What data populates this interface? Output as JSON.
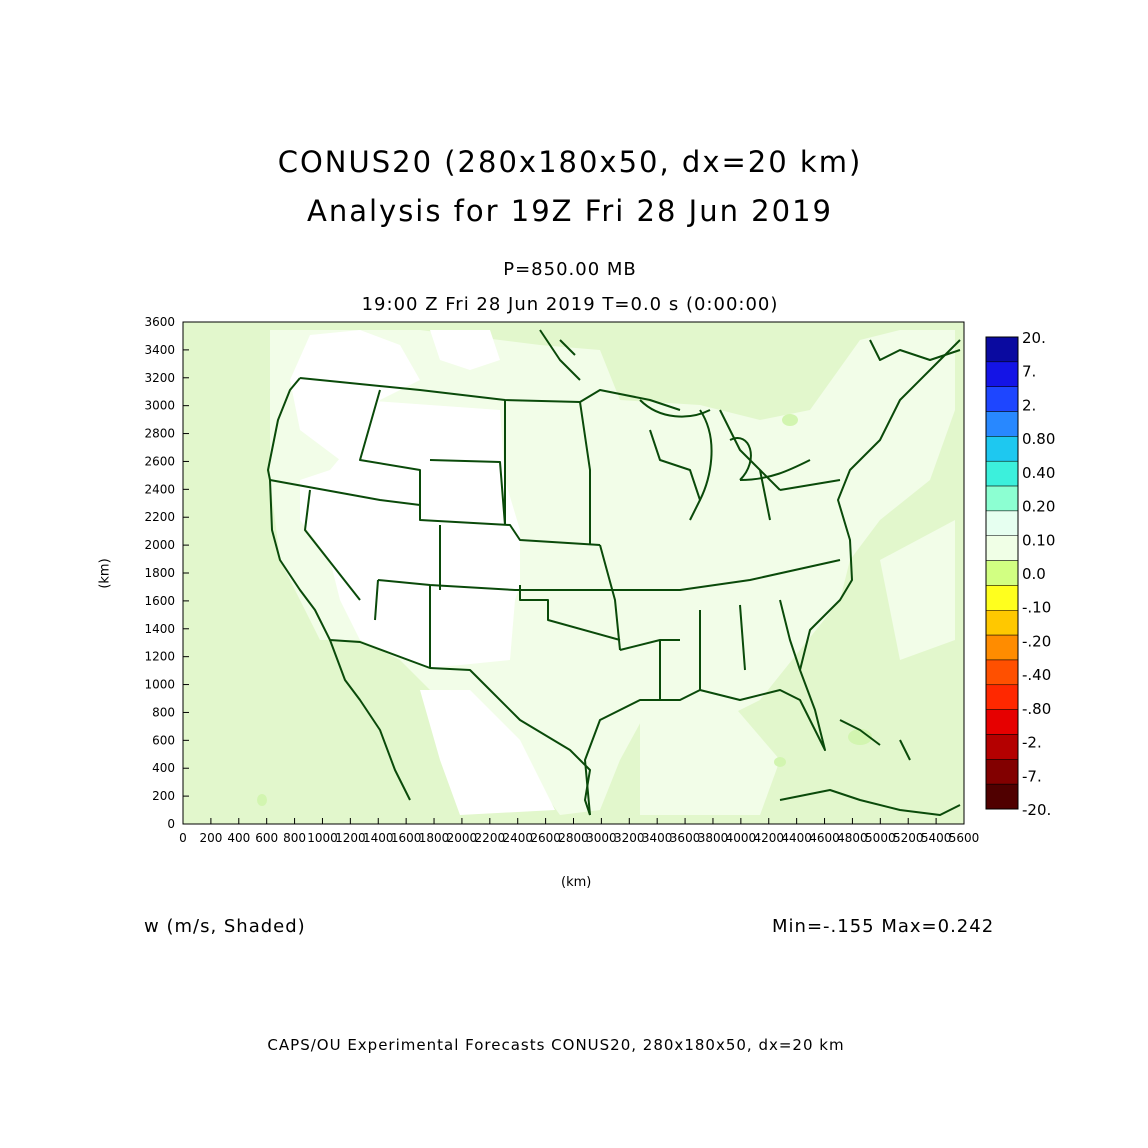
{
  "header": {
    "title_line1": "CONUS20 (280x180x50, dx=20 km)",
    "title_line2": "Analysis for 19Z Fri 28 Jun 2019",
    "level": "P=850.00 MB",
    "time_line": "19:00 Z Fri 28 Jun 2019    T=0.0 s (0:00:00)"
  },
  "axes": {
    "x_label": "(km)",
    "y_label": "(km)",
    "x_ticks": [
      "0",
      "200",
      "400",
      "600",
      "800",
      "1000",
      "1200",
      "1400",
      "1600",
      "1800",
      "2000",
      "2200",
      "2400",
      "2600",
      "2800",
      "3000",
      "3200",
      "3400",
      "3600",
      "3800",
      "4000",
      "4200",
      "4400",
      "4600",
      "4800",
      "5000",
      "5200",
      "5400",
      "5600"
    ],
    "y_ticks": [
      "0",
      "200",
      "400",
      "600",
      "800",
      "1000",
      "1200",
      "1400",
      "1600",
      "1800",
      "2000",
      "2200",
      "2400",
      "2600",
      "2800",
      "3000",
      "3200",
      "3400",
      "3600"
    ]
  },
  "colorbar": {
    "labels": [
      "20.",
      "7.",
      "2.",
      "0.80",
      "0.40",
      "0.20",
      "0.10",
      "0.0",
      "-.10",
      "-.20",
      "-.40",
      "-.80",
      "-2.",
      "-7.",
      "-20."
    ],
    "colors": [
      "#0a0aa0",
      "#1414e6",
      "#1e46ff",
      "#2888ff",
      "#1ec8f0",
      "#3cf0dc",
      "#8cffd2",
      "#e6fff0",
      "#f0ffe6",
      "#d2ff82",
      "#ffff1e",
      "#ffc800",
      "#ff8c00",
      "#ff5000",
      "#ff2800",
      "#e60000",
      "#b40000",
      "#820000",
      "#500000"
    ]
  },
  "field": {
    "variable": "w (m/s, Shaded)",
    "range_text": "Min=-.155  Max=0.242"
  },
  "footer": {
    "credit": "CAPS/OU Experimental Forecasts   CONUS20, 280x180x50, dx=20 km"
  },
  "map_colors": {
    "background_fill": "#e2f7cc",
    "light_fill": "#f2fde8",
    "white_fill": "#ffffff",
    "positive_fill": "#d2f5b0",
    "boundary": "#0a4a0a"
  }
}
